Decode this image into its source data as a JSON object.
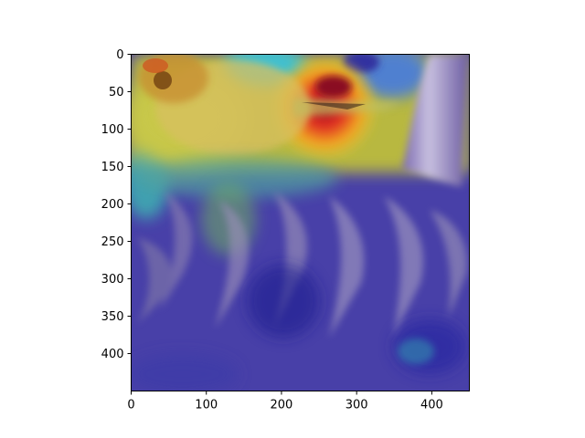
{
  "figure": {
    "background_color": "#ffffff",
    "image_content": "heatmap overlay of a goldfinch perched on a dried sunflower head",
    "colormap": "jet",
    "x_axis": {
      "range": [
        0,
        450
      ],
      "ticks": [
        0,
        100,
        200,
        300,
        400
      ]
    },
    "y_axis": {
      "range": [
        0,
        450
      ],
      "inverted": true,
      "ticks": [
        0,
        50,
        100,
        150,
        200,
        250,
        300,
        350,
        400
      ]
    }
  }
}
